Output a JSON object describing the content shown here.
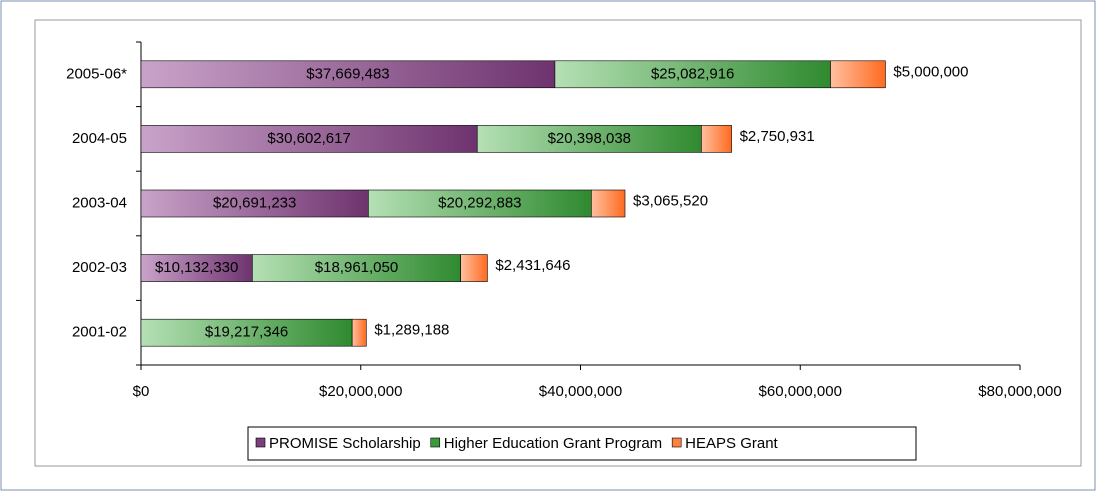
{
  "chart_data": {
    "type": "stacked-bar-horizontal",
    "categories": [
      "2005-06*",
      "2004-05",
      "2003-04",
      "2002-03",
      "2001-02"
    ],
    "series": [
      {
        "name": "PROMISE Scholarship",
        "color": "#7b3f7b",
        "values": [
          37669483,
          30602617,
          20691233,
          10132330,
          null
        ],
        "value_labels": [
          "$37,669,483",
          "$30,602,617",
          "$20,691,233",
          "$10,132,330",
          null
        ]
      },
      {
        "name": "Higher Education Grant Program",
        "color": "#3c9a3c",
        "values": [
          25082916,
          20398038,
          20292883,
          18961050,
          19217346
        ],
        "value_labels": [
          "$25,082,916",
          "$20,398,038",
          "$20,292,883",
          "$18,961,050",
          "$19,217,346"
        ]
      },
      {
        "name": "HEAPS Grant",
        "color": "#ff8040",
        "values": [
          5000000,
          2750931,
          3065520,
          2431646,
          1289188
        ],
        "value_labels": [
          "$5,000,000",
          "$2,750,931",
          "$3,065,520",
          "$2,431,646",
          "$1,289,188"
        ]
      }
    ],
    "xlim": [
      0,
      80000000
    ],
    "xticks": [
      {
        "value": 0,
        "label": "$0"
      },
      {
        "value": 20000000,
        "label": "$20,000,000"
      },
      {
        "value": 40000000,
        "label": "$40,000,000"
      },
      {
        "value": 60000000,
        "label": "$60,000,000"
      },
      {
        "value": 80000000,
        "label": "$80,000,000"
      }
    ],
    "legend": "bottom"
  }
}
